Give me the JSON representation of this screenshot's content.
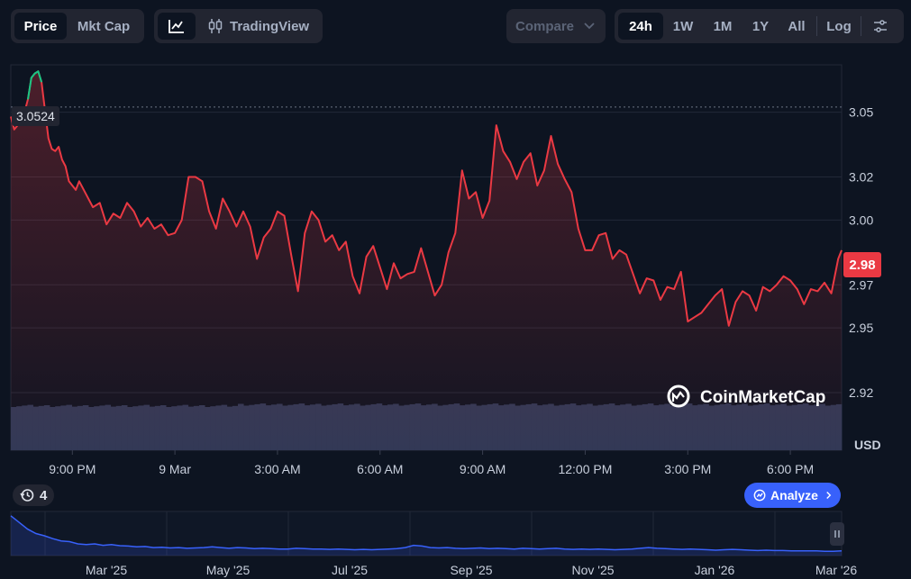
{
  "toolbar": {
    "metric_tabs": [
      "Price",
      "Mkt Cap"
    ],
    "active_metric": "Price",
    "tradingview_label": "TradingView",
    "compare_label": "Compare",
    "ranges": [
      "24h",
      "1W",
      "1M",
      "1Y",
      "All"
    ],
    "active_range": "24h",
    "log_label": "Log"
  },
  "colors": {
    "background": "#0d1421",
    "line_down": "#ea3943",
    "line_up": "#16c784",
    "volume": "#2f3956",
    "overview_line": "#3861fb",
    "analyze_button": "#3861fb"
  },
  "chart_data": {
    "type": "line",
    "currency_label": "USD",
    "open_price_label": "3.0524",
    "current_price_label": "2.98",
    "y_ticks": [
      "3.05",
      "3.02",
      "3.00",
      "2.97",
      "2.95",
      "2.92"
    ],
    "y_tick_values": [
      3.05,
      3.02,
      3.0,
      2.97,
      2.95,
      2.92
    ],
    "ylim": [
      2.92,
      3.072
    ],
    "open_price": 3.0524,
    "x_ticks": [
      "9:00 PM",
      "9 Mar",
      "3:00 AM",
      "6:00 AM",
      "9:00 AM",
      "12:00 PM",
      "3:00 PM",
      "6:00 PM"
    ],
    "x_tick_hours": [
      1.8,
      4.8,
      7.8,
      10.8,
      13.8,
      16.8,
      19.8,
      22.8
    ],
    "x_range_hours": [
      0,
      24.3
    ],
    "price_series": {
      "x_hours": [
        0,
        0.1,
        0.2,
        0.3,
        0.4,
        0.5,
        0.6,
        0.7,
        0.8,
        0.9,
        1.0,
        1.1,
        1.2,
        1.3,
        1.4,
        1.5,
        1.6,
        1.7,
        1.8,
        1.9,
        2.0,
        2.2,
        2.4,
        2.6,
        2.8,
        3.0,
        3.2,
        3.4,
        3.6,
        3.8,
        4.0,
        4.2,
        4.4,
        4.6,
        4.8,
        5.0,
        5.2,
        5.4,
        5.6,
        5.8,
        6.0,
        6.2,
        6.4,
        6.6,
        6.8,
        7.0,
        7.2,
        7.4,
        7.6,
        7.8,
        8.0,
        8.2,
        8.4,
        8.6,
        8.8,
        9.0,
        9.2,
        9.4,
        9.6,
        9.8,
        10.0,
        10.2,
        10.4,
        10.6,
        10.8,
        11.0,
        11.2,
        11.4,
        11.6,
        11.8,
        12.0,
        12.2,
        12.4,
        12.6,
        12.8,
        13.0,
        13.2,
        13.4,
        13.6,
        13.8,
        14.0,
        14.2,
        14.4,
        14.6,
        14.8,
        15.0,
        15.2,
        15.4,
        15.6,
        15.8,
        16.0,
        16.2,
        16.4,
        16.6,
        16.8,
        17.0,
        17.2,
        17.4,
        17.6,
        17.8,
        18.0,
        18.2,
        18.4,
        18.6,
        18.8,
        19.0,
        19.2,
        19.4,
        19.6,
        19.8,
        20.0,
        20.2,
        20.4,
        20.6,
        20.8,
        21.0,
        21.2,
        21.4,
        21.6,
        21.8,
        22.0,
        22.2,
        22.4,
        22.6,
        22.8,
        23.0,
        23.2,
        23.4,
        23.6,
        23.8,
        24.0,
        24.2,
        24.3
      ],
      "y_values": [
        3.048,
        3.042,
        3.044,
        3.046,
        3.05,
        3.056,
        3.066,
        3.068,
        3.069,
        3.064,
        3.051,
        3.038,
        3.033,
        3.032,
        3.034,
        3.028,
        3.025,
        3.018,
        3.016,
        3.014,
        3.018,
        3.012,
        3.006,
        3.008,
        2.998,
        3.003,
        3.001,
        3.008,
        3.004,
        2.997,
        3.001,
        2.996,
        2.998,
        2.993,
        2.994,
        3.0,
        3.02,
        3.02,
        3.018,
        3.004,
        2.996,
        3.01,
        3.004,
        2.997,
        3.004,
        2.997,
        2.982,
        2.992,
        2.996,
        3.004,
        3.002,
        2.984,
        2.967,
        2.994,
        3.004,
        3.0,
        2.99,
        2.993,
        2.986,
        2.99,
        2.974,
        2.966,
        2.983,
        2.988,
        2.978,
        2.968,
        2.98,
        2.973,
        2.975,
        2.976,
        2.987,
        2.976,
        2.965,
        2.97,
        2.985,
        2.994,
        3.023,
        3.01,
        3.013,
        3.001,
        3.009,
        3.044,
        3.032,
        3.027,
        3.019,
        3.027,
        3.031,
        3.016,
        3.023,
        3.039,
        3.026,
        3.019,
        3.013,
        2.996,
        2.986,
        2.986,
        2.993,
        2.994,
        2.982,
        2.986,
        2.984,
        2.975,
        2.966,
        2.973,
        2.972,
        2.963,
        2.969,
        2.968,
        2.976,
        2.953,
        2.955,
        2.957,
        2.961,
        2.965,
        2.968,
        2.951,
        2.962,
        2.967,
        2.965,
        2.958,
        2.969,
        2.967,
        2.97,
        2.974,
        2.972,
        2.968,
        2.961,
        2.968,
        2.967,
        2.971,
        2.966,
        2.982,
        2.986
      ]
    },
    "volume_bar_count": 150,
    "overview": {
      "x_labels": [
        "Mar '25",
        "May '25",
        "Jul '25",
        "Sep '25",
        "Nov '25",
        "Jan '26",
        "Mar '26"
      ],
      "values": [
        0.98,
        0.8,
        0.62,
        0.5,
        0.44,
        0.36,
        0.3,
        0.28,
        0.22,
        0.2,
        0.22,
        0.18,
        0.2,
        0.17,
        0.16,
        0.14,
        0.15,
        0.12,
        0.13,
        0.11,
        0.12,
        0.1,
        0.11,
        0.12,
        0.14,
        0.12,
        0.1,
        0.12,
        0.11,
        0.09,
        0.1,
        0.09,
        0.08,
        0.08,
        0.1,
        0.09,
        0.08,
        0.08,
        0.07,
        0.08,
        0.07,
        0.06,
        0.07,
        0.06,
        0.07,
        0.08,
        0.09,
        0.12,
        0.18,
        0.16,
        0.12,
        0.11,
        0.12,
        0.1,
        0.09,
        0.1,
        0.11,
        0.09,
        0.1,
        0.09,
        0.08,
        0.1,
        0.09,
        0.08,
        0.09,
        0.1,
        0.08,
        0.07,
        0.08,
        0.07,
        0.08,
        0.07,
        0.06,
        0.07,
        0.08,
        0.1,
        0.12,
        0.1,
        0.09,
        0.08,
        0.07,
        0.08,
        0.07,
        0.06,
        0.05,
        0.06,
        0.07,
        0.06,
        0.05,
        0.04,
        0.05,
        0.04,
        0.04,
        0.03,
        0.03,
        0.03,
        0.03,
        0.02,
        0.02,
        0.03
      ]
    }
  },
  "watermark": "CoinMarketCap",
  "history_count": "4",
  "analyze_label": "Analyze"
}
